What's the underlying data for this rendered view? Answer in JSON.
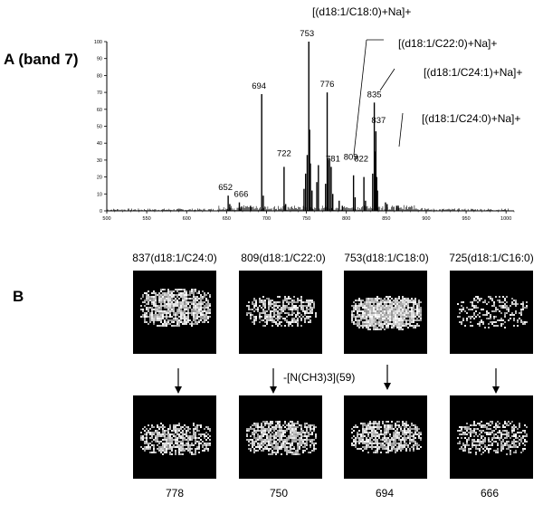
{
  "panel_a_label": "A (band 7)",
  "panel_b_label": "B",
  "chart_data": {
    "type": "bar",
    "title": "",
    "xlabel": "",
    "ylabel": "",
    "xlim": [
      500,
      1010
    ],
    "ylim": [
      0,
      100
    ],
    "x_ticks": [
      500,
      550,
      600,
      650,
      700,
      750,
      800,
      850,
      900,
      950,
      1000
    ],
    "y_ticks": [
      0,
      10,
      20,
      30,
      40,
      50,
      60,
      70,
      80,
      90,
      100
    ],
    "peaks": [
      {
        "mz": 652,
        "intensity": 9
      },
      {
        "mz": 654,
        "intensity": 4
      },
      {
        "mz": 666,
        "intensity": 5
      },
      {
        "mz": 668,
        "intensity": 2
      },
      {
        "mz": 680,
        "intensity": 3
      },
      {
        "mz": 694,
        "intensity": 69
      },
      {
        "mz": 696,
        "intensity": 9
      },
      {
        "mz": 722,
        "intensity": 26
      },
      {
        "mz": 724,
        "intensity": 4
      },
      {
        "mz": 747,
        "intensity": 13
      },
      {
        "mz": 749,
        "intensity": 22
      },
      {
        "mz": 751,
        "intensity": 33
      },
      {
        "mz": 753,
        "intensity": 100
      },
      {
        "mz": 754,
        "intensity": 48
      },
      {
        "mz": 755,
        "intensity": 28
      },
      {
        "mz": 757,
        "intensity": 12
      },
      {
        "mz": 763,
        "intensity": 17
      },
      {
        "mz": 765,
        "intensity": 27
      },
      {
        "mz": 774,
        "intensity": 16
      },
      {
        "mz": 776,
        "intensity": 70
      },
      {
        "mz": 777,
        "intensity": 30
      },
      {
        "mz": 779,
        "intensity": 31
      },
      {
        "mz": 781,
        "intensity": 26
      },
      {
        "mz": 783,
        "intensity": 10
      },
      {
        "mz": 791,
        "intensity": 6
      },
      {
        "mz": 795,
        "intensity": 3
      },
      {
        "mz": 809,
        "intensity": 21
      },
      {
        "mz": 811,
        "intensity": 8
      },
      {
        "mz": 822,
        "intensity": 20
      },
      {
        "mz": 824,
        "intensity": 6
      },
      {
        "mz": 833,
        "intensity": 22
      },
      {
        "mz": 835,
        "intensity": 64
      },
      {
        "mz": 836,
        "intensity": 35
      },
      {
        "mz": 837,
        "intensity": 47
      },
      {
        "mz": 838,
        "intensity": 20
      },
      {
        "mz": 839,
        "intensity": 12
      },
      {
        "mz": 849,
        "intensity": 5
      },
      {
        "mz": 851,
        "intensity": 4
      },
      {
        "mz": 863,
        "intensity": 3
      },
      {
        "mz": 865,
        "intensity": 3
      }
    ],
    "peak_labels": [
      {
        "text": "652",
        "mz": 652
      },
      {
        "text": "666",
        "mz": 666
      },
      {
        "text": "694",
        "mz": 694
      },
      {
        "text": "722",
        "mz": 722
      },
      {
        "text": "753",
        "mz": 753
      },
      {
        "text": "776",
        "mz": 776
      },
      {
        "text": "781",
        "mz": 781
      },
      {
        "text": "809",
        "mz": 809
      },
      {
        "text": "822",
        "mz": 822
      },
      {
        "text": "835",
        "mz": 835
      },
      {
        "text": "837",
        "mz": 837
      }
    ],
    "annotations": [
      "[(d18:1/C18:0)+Na]+",
      "[(d18:1/C22:0)+Na]+",
      "[(d18:1/C24:1)+Na]+",
      "[(d18:1/C24:0)+Na]+"
    ]
  },
  "images": {
    "top_titles": [
      "837(d18:1/C24:0)",
      "809(d18:1/C22:0)",
      "753(d18:1/C18:0)",
      "725(d18:1/C16:0)"
    ],
    "bottom_values": [
      "778",
      "750",
      "694",
      "666"
    ],
    "loss_label": "-[N(CH3)3](59)"
  }
}
